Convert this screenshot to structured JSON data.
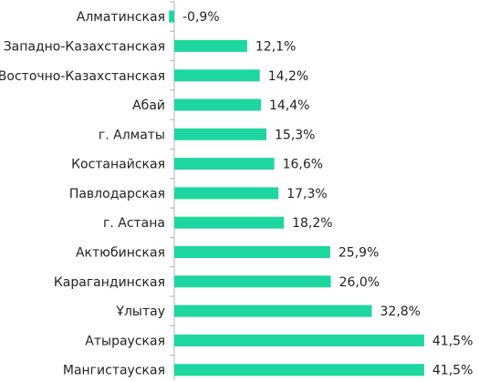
{
  "chart_data": {
    "type": "bar",
    "orientation": "horizontal",
    "categories": [
      "Алматинская",
      "Западно-Казахстанская",
      "Восточно-Казахстанская",
      "Абай",
      "г. Алматы",
      "Костанайская",
      "Павлодарская",
      "г. Астана",
      "Актюбинская",
      "Карагандинская",
      "Ұлытау",
      "Атырауская",
      "Мангистауская"
    ],
    "values": [
      -0.9,
      12.1,
      14.2,
      14.4,
      15.3,
      16.6,
      17.3,
      18.2,
      25.9,
      26.0,
      32.8,
      41.5,
      41.5
    ],
    "value_labels": [
      "-0,9%",
      "12,1%",
      "14,2%",
      "14,4%",
      "15,3%",
      "16,6%",
      "17,3%",
      "18,2%",
      "25,9%",
      "26,0%",
      "32,8%",
      "41,5%",
      "41,5%"
    ],
    "title": "",
    "xlabel": "",
    "ylabel": "",
    "xlim": [
      -0.9,
      41.5
    ],
    "grid": false,
    "legend": "none",
    "colors": {
      "bar": "#1ed6a0",
      "axis": "#b0b0b0",
      "text": "#222222"
    }
  }
}
